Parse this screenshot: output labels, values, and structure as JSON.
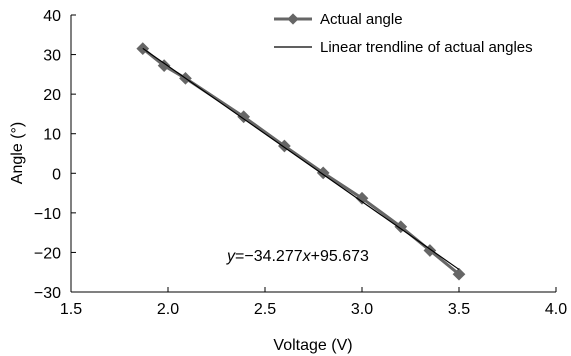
{
  "chart_data": {
    "type": "line",
    "title": "",
    "xlabel": "Voltage (V)",
    "ylabel": "Angle (°)",
    "xlim": [
      1.5,
      4.0
    ],
    "ylim": [
      -30,
      40
    ],
    "x_ticks": [
      "1.5",
      "2.0",
      "2.5",
      "3.0",
      "3.5",
      "4.0"
    ],
    "y_ticks": [
      "40",
      "30",
      "20",
      "10",
      "0",
      "−10",
      "−20",
      "−30"
    ],
    "grid": false,
    "legend_position": "top-right",
    "series": [
      {
        "name": "Actual angle",
        "color": "#666666",
        "marker": "diamond",
        "x": [
          1.87,
          1.98,
          2.09,
          2.39,
          2.6,
          2.8,
          3.0,
          3.2,
          3.35,
          3.5
        ],
        "y": [
          31.5,
          27.2,
          24.0,
          14.3,
          6.9,
          0.1,
          -6.3,
          -13.5,
          -19.5,
          -25.5
        ]
      }
    ],
    "trendline": {
      "name": "Linear trendline of actual angles",
      "color": "#000000",
      "slope": -34.277,
      "intercept": 95.673,
      "x_range": [
        1.87,
        3.5
      ]
    },
    "equation": {
      "y_var": "y",
      "middle": "=−34.277",
      "x_var": "x",
      "tail": "+95.673"
    }
  }
}
